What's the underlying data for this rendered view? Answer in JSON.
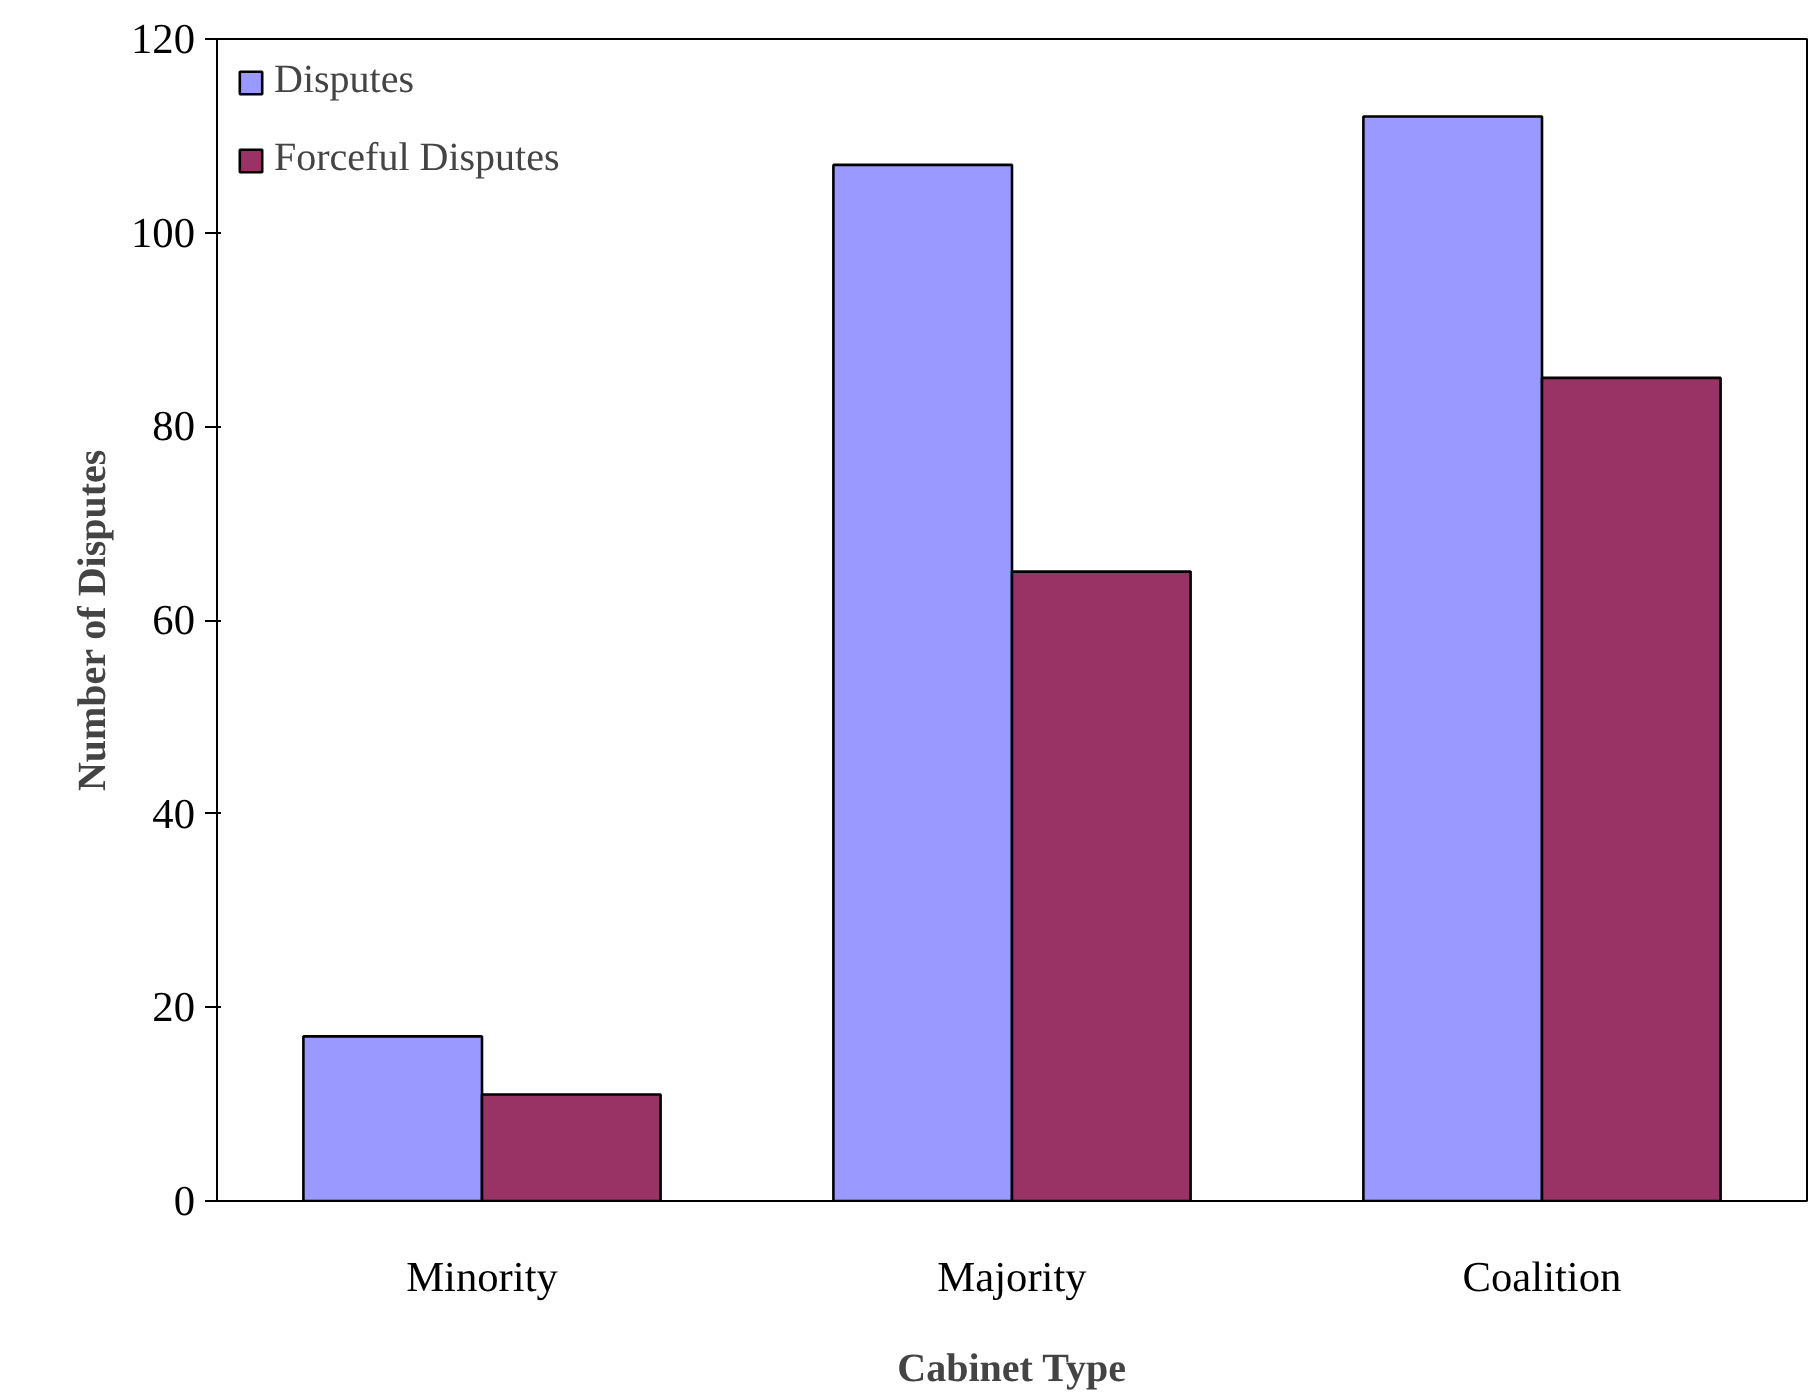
{
  "chart_data": {
    "type": "bar",
    "xlabel": "Cabinet Type",
    "ylabel": "Number of Disputes",
    "categories": [
      "Minority",
      "Majority",
      "Coalition"
    ],
    "series": [
      {
        "name": "Disputes",
        "color": "#9999ff",
        "values": [
          17,
          107,
          112
        ]
      },
      {
        "name": "Forceful Disputes",
        "color": "#993366",
        "values": [
          11,
          65,
          85
        ]
      }
    ],
    "ylim": [
      0,
      120
    ],
    "yticks": [
      0,
      20,
      40,
      60,
      80,
      100,
      120
    ],
    "grid": false,
    "legend": "top left"
  }
}
